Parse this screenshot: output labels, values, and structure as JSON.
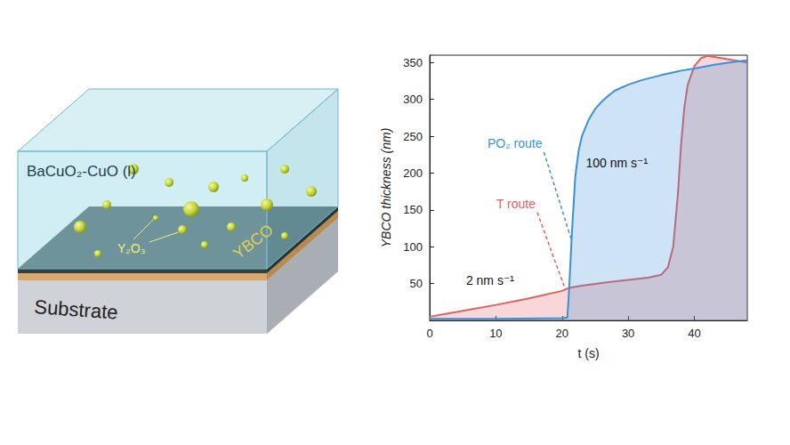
{
  "chart_data": {
    "type": "line",
    "x_label": "t (s)",
    "y_label": "YBCO thickness (nm)",
    "xlim": [
      0,
      48
    ],
    "xticks": [
      0,
      10,
      20,
      30,
      40
    ],
    "ylim": [
      0,
      360
    ],
    "yticks": [
      50,
      100,
      150,
      200,
      250,
      300,
      350
    ],
    "grid": false,
    "series": [
      {
        "name": "T route",
        "color": "#e0605f",
        "x": [
          0,
          5,
          10,
          15,
          20,
          21,
          23,
          27,
          30,
          33,
          35,
          36,
          36.8,
          37.5,
          38,
          38.5,
          39,
          40,
          41,
          42,
          44,
          46,
          48
        ],
        "values": [
          5,
          13,
          21,
          30,
          40,
          44,
          47,
          52,
          55,
          58,
          62,
          72,
          100,
          170,
          240,
          290,
          320,
          345,
          356,
          359,
          356,
          353,
          350
        ]
      },
      {
        "name": "PO₂ route",
        "color": "#3d8fd6",
        "x": [
          0,
          10,
          20,
          20.8,
          21,
          21.5,
          22,
          22.5,
          23,
          24,
          25,
          26,
          27,
          28,
          30,
          32,
          35,
          38,
          40,
          43,
          46,
          48
        ],
        "values": [
          2,
          2,
          3,
          4,
          30,
          120,
          195,
          230,
          250,
          272,
          287,
          297,
          305,
          312,
          320,
          326,
          333,
          339,
          342,
          347,
          351,
          353
        ]
      }
    ],
    "annotations": [
      {
        "text": "100 nm s⁻¹",
        "series": "PO₂ route"
      },
      {
        "text": "2 nm s⁻¹",
        "series": "T route"
      }
    ]
  },
  "diagram": {
    "labels": {
      "liquid": "BaCuO₂-CuO (l)",
      "particles": "Y₂O₃",
      "film": "YBCO",
      "substrate": "Substrate"
    }
  }
}
